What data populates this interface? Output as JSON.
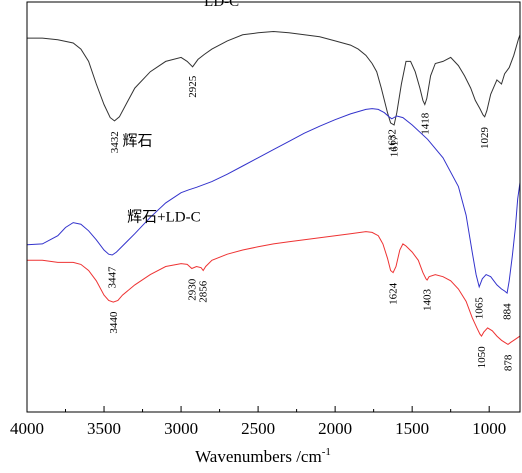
{
  "chart_data": {
    "type": "line",
    "title": "",
    "xlabel": "Wavenumbers /cm",
    "xlabel_sup": "-1",
    "ylabel": "",
    "xlim": [
      4000,
      800
    ],
    "ylim": [
      0,
      10
    ],
    "x_reversed": true,
    "y_ticks_shown": false,
    "grid": false,
    "xticks": [
      4000,
      3500,
      3000,
      2500,
      2000,
      1500,
      1000
    ],
    "xtick_labels": [
      "4000",
      "3500",
      "3000",
      "2500",
      "2000",
      "1500",
      "1000"
    ],
    "series": [
      {
        "name": "LD-C",
        "color": "#333333",
        "points": [
          [
            4000,
            9.12
          ],
          [
            3900,
            9.12
          ],
          [
            3800,
            9.08
          ],
          [
            3700,
            9.0
          ],
          [
            3650,
            8.85
          ],
          [
            3600,
            8.55
          ],
          [
            3550,
            8.0
          ],
          [
            3500,
            7.5
          ],
          [
            3460,
            7.18
          ],
          [
            3432,
            7.1
          ],
          [
            3400,
            7.2
          ],
          [
            3350,
            7.55
          ],
          [
            3300,
            7.9
          ],
          [
            3200,
            8.3
          ],
          [
            3100,
            8.55
          ],
          [
            3000,
            8.65
          ],
          [
            2960,
            8.55
          ],
          [
            2925,
            8.42
          ],
          [
            2890,
            8.6
          ],
          [
            2850,
            8.72
          ],
          [
            2800,
            8.85
          ],
          [
            2700,
            9.05
          ],
          [
            2600,
            9.2
          ],
          [
            2500,
            9.25
          ],
          [
            2400,
            9.28
          ],
          [
            2300,
            9.25
          ],
          [
            2200,
            9.2
          ],
          [
            2100,
            9.15
          ],
          [
            2000,
            9.05
          ],
          [
            1900,
            8.95
          ],
          [
            1850,
            8.85
          ],
          [
            1800,
            8.7
          ],
          [
            1760,
            8.5
          ],
          [
            1730,
            8.3
          ],
          [
            1700,
            7.9
          ],
          [
            1660,
            7.3
          ],
          [
            1640,
            7.05
          ],
          [
            1617,
            7.0
          ],
          [
            1600,
            7.3
          ],
          [
            1570,
            8.0
          ],
          [
            1540,
            8.55
          ],
          [
            1510,
            8.55
          ],
          [
            1480,
            8.3
          ],
          [
            1450,
            7.9
          ],
          [
            1430,
            7.6
          ],
          [
            1418,
            7.5
          ],
          [
            1405,
            7.65
          ],
          [
            1380,
            8.2
          ],
          [
            1350,
            8.5
          ],
          [
            1300,
            8.55
          ],
          [
            1250,
            8.65
          ],
          [
            1200,
            8.45
          ],
          [
            1160,
            8.2
          ],
          [
            1120,
            7.9
          ],
          [
            1090,
            7.6
          ],
          [
            1060,
            7.4
          ],
          [
            1040,
            7.25
          ],
          [
            1029,
            7.2
          ],
          [
            1015,
            7.35
          ],
          [
            990,
            7.75
          ],
          [
            950,
            8.1
          ],
          [
            920,
            8.0
          ],
          [
            900,
            8.25
          ],
          [
            870,
            8.4
          ],
          [
            840,
            8.7
          ],
          [
            810,
            9.1
          ],
          [
            800,
            9.2
          ]
        ]
      },
      {
        "name": "辉石",
        "color": "#3333cc",
        "points": [
          [
            4000,
            4.08
          ],
          [
            3900,
            4.1
          ],
          [
            3800,
            4.3
          ],
          [
            3750,
            4.5
          ],
          [
            3700,
            4.62
          ],
          [
            3650,
            4.58
          ],
          [
            3600,
            4.42
          ],
          [
            3550,
            4.2
          ],
          [
            3500,
            3.95
          ],
          [
            3470,
            3.85
          ],
          [
            3447,
            3.83
          ],
          [
            3420,
            3.9
          ],
          [
            3380,
            4.05
          ],
          [
            3300,
            4.35
          ],
          [
            3200,
            4.75
          ],
          [
            3100,
            5.1
          ],
          [
            3000,
            5.35
          ],
          [
            2950,
            5.42
          ],
          [
            2900,
            5.48
          ],
          [
            2800,
            5.62
          ],
          [
            2700,
            5.8
          ],
          [
            2600,
            6.0
          ],
          [
            2500,
            6.2
          ],
          [
            2400,
            6.4
          ],
          [
            2300,
            6.6
          ],
          [
            2200,
            6.8
          ],
          [
            2100,
            6.97
          ],
          [
            2000,
            7.13
          ],
          [
            1900,
            7.27
          ],
          [
            1800,
            7.38
          ],
          [
            1760,
            7.4
          ],
          [
            1720,
            7.38
          ],
          [
            1680,
            7.3
          ],
          [
            1650,
            7.2
          ],
          [
            1632,
            7.15
          ],
          [
            1600,
            7.22
          ],
          [
            1560,
            7.18
          ],
          [
            1500,
            7.0
          ],
          [
            1400,
            6.65
          ],
          [
            1300,
            6.2
          ],
          [
            1200,
            5.5
          ],
          [
            1150,
            4.8
          ],
          [
            1110,
            3.9
          ],
          [
            1085,
            3.35
          ],
          [
            1065,
            3.05
          ],
          [
            1045,
            3.25
          ],
          [
            1020,
            3.35
          ],
          [
            990,
            3.3
          ],
          [
            950,
            3.1
          ],
          [
            920,
            3.0
          ],
          [
            900,
            2.95
          ],
          [
            884,
            2.9
          ],
          [
            870,
            3.2
          ],
          [
            850,
            3.8
          ],
          [
            830,
            4.5
          ],
          [
            815,
            5.2
          ],
          [
            800,
            5.6
          ]
        ]
      },
      {
        "name": "辉石+LD-C",
        "color": "#ee3333",
        "points": [
          [
            4000,
            3.7
          ],
          [
            3900,
            3.7
          ],
          [
            3800,
            3.65
          ],
          [
            3700,
            3.65
          ],
          [
            3650,
            3.6
          ],
          [
            3600,
            3.45
          ],
          [
            3550,
            3.2
          ],
          [
            3500,
            2.85
          ],
          [
            3470,
            2.72
          ],
          [
            3440,
            2.68
          ],
          [
            3410,
            2.72
          ],
          [
            3380,
            2.85
          ],
          [
            3300,
            3.1
          ],
          [
            3200,
            3.35
          ],
          [
            3100,
            3.55
          ],
          [
            3000,
            3.62
          ],
          [
            2960,
            3.6
          ],
          [
            2930,
            3.5
          ],
          [
            2900,
            3.55
          ],
          [
            2870,
            3.52
          ],
          [
            2856,
            3.45
          ],
          [
            2840,
            3.55
          ],
          [
            2800,
            3.7
          ],
          [
            2700,
            3.85
          ],
          [
            2600,
            3.95
          ],
          [
            2500,
            4.03
          ],
          [
            2400,
            4.1
          ],
          [
            2300,
            4.15
          ],
          [
            2200,
            4.2
          ],
          [
            2100,
            4.25
          ],
          [
            2000,
            4.3
          ],
          [
            1900,
            4.35
          ],
          [
            1800,
            4.4
          ],
          [
            1760,
            4.38
          ],
          [
            1720,
            4.3
          ],
          [
            1690,
            4.1
          ],
          [
            1660,
            3.75
          ],
          [
            1640,
            3.45
          ],
          [
            1624,
            3.4
          ],
          [
            1605,
            3.55
          ],
          [
            1580,
            3.95
          ],
          [
            1560,
            4.1
          ],
          [
            1540,
            4.05
          ],
          [
            1500,
            3.9
          ],
          [
            1460,
            3.7
          ],
          [
            1430,
            3.4
          ],
          [
            1410,
            3.25
          ],
          [
            1403,
            3.22
          ],
          [
            1390,
            3.3
          ],
          [
            1350,
            3.35
          ],
          [
            1300,
            3.3
          ],
          [
            1250,
            3.2
          ],
          [
            1200,
            3.0
          ],
          [
            1150,
            2.7
          ],
          [
            1110,
            2.3
          ],
          [
            1080,
            2.05
          ],
          [
            1060,
            1.9
          ],
          [
            1050,
            1.85
          ],
          [
            1035,
            1.95
          ],
          [
            1010,
            2.05
          ],
          [
            980,
            1.98
          ],
          [
            950,
            1.85
          ],
          [
            920,
            1.75
          ],
          [
            900,
            1.7
          ],
          [
            878,
            1.65
          ],
          [
            860,
            1.7
          ],
          [
            840,
            1.75
          ],
          [
            820,
            1.8
          ],
          [
            800,
            1.85
          ]
        ]
      }
    ],
    "series_labels": [
      {
        "text": "LD-C",
        "x": 2850,
        "y": 9.9
      },
      {
        "text": "辉石",
        "x": 3380,
        "y": 6.5
      },
      {
        "text": "辉石+LD-C",
        "x": 3350,
        "y": 4.65
      }
    ],
    "peak_labels": [
      {
        "text": "3432",
        "x": 3432,
        "y": 6.85,
        "series": 0
      },
      {
        "text": "2925",
        "x": 2925,
        "y": 8.2,
        "series": 0
      },
      {
        "text": "1617",
        "x": 1617,
        "y": 6.75,
        "series": 0
      },
      {
        "text": "1418",
        "x": 1418,
        "y": 7.3,
        "series": 0
      },
      {
        "text": "1029",
        "x": 1029,
        "y": 6.95,
        "series": 0
      },
      {
        "text": "1632",
        "x": 1632,
        "y": 6.9,
        "series": 1
      },
      {
        "text": "3447",
        "x": 3447,
        "y": 3.55,
        "series": 1
      },
      {
        "text": "1065",
        "x": 1065,
        "y": 2.8,
        "series": 1
      },
      {
        "text": "884",
        "x": 884,
        "y": 2.65,
        "series": 1
      },
      {
        "text": "1624",
        "x": 1624,
        "y": 3.15,
        "series": 2
      },
      {
        "text": "1403",
        "x": 1403,
        "y": 3.0,
        "series": 2
      },
      {
        "text": "2930",
        "x": 2930,
        "y": 3.25,
        "series": 2
      },
      {
        "text": "2856",
        "x": 2856,
        "y": 3.2,
        "series": 2
      },
      {
        "text": "3440",
        "x": 3440,
        "y": 2.45,
        "series": 2
      },
      {
        "text": "1050",
        "x": 1050,
        "y": 1.6,
        "series": 2
      },
      {
        "text": "878",
        "x": 878,
        "y": 1.4,
        "series": 2
      }
    ]
  }
}
